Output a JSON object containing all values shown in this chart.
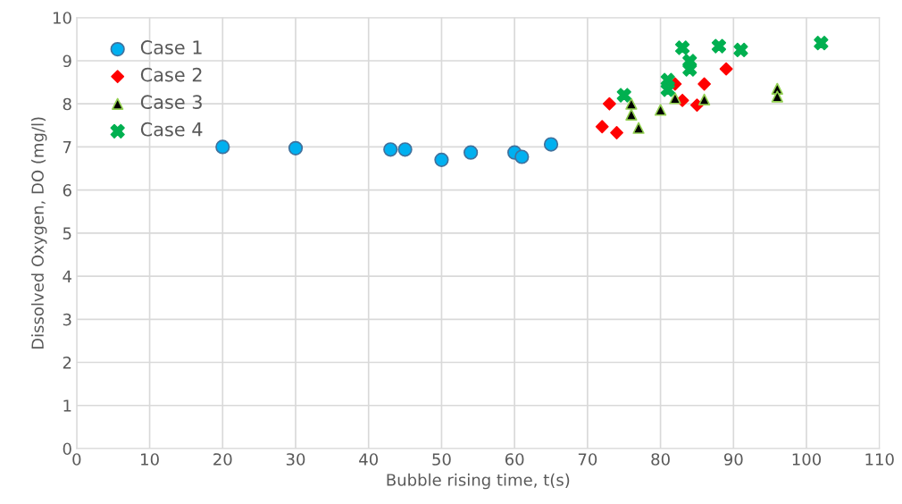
{
  "chart_data": {
    "type": "scatter",
    "xlabel": "Bubble rising time, t(s)",
    "ylabel": "Dissolved Oxygen, DO (mg/l)",
    "xlim": [
      0,
      110
    ],
    "xticks": [
      0,
      10,
      20,
      30,
      40,
      50,
      60,
      70,
      80,
      90,
      100,
      110
    ],
    "ylim": [
      0,
      10
    ],
    "yticks": [
      0,
      1,
      2,
      3,
      4,
      5,
      6,
      7,
      8,
      9,
      10
    ],
    "grid": true,
    "legend": "top left",
    "series": [
      {
        "name": "Case 1",
        "color": "#00b0f0",
        "marker": "circle",
        "x": [
          20,
          30,
          43,
          45,
          50,
          54,
          60,
          61,
          65
        ],
        "values": [
          7.0,
          6.97,
          6.94,
          6.94,
          6.7,
          6.87,
          6.87,
          6.77,
          7.06
        ]
      },
      {
        "name": "Case 2",
        "color": "#ff0000",
        "marker": "diamond",
        "x": [
          72,
          73,
          74,
          75,
          82,
          83,
          85,
          86,
          89
        ],
        "values": [
          7.47,
          8.0,
          7.33,
          null,
          8.46,
          8.08,
          7.97,
          8.46,
          8.81
        ]
      },
      {
        "name": "Case 3",
        "color": "#000000",
        "marker": "triangle",
        "x": [
          76,
          76,
          77,
          80,
          82,
          86,
          96,
          96
        ],
        "values": [
          8.0,
          7.75,
          7.44,
          7.86,
          8.13,
          8.1,
          8.35,
          8.17
        ]
      },
      {
        "name": "Case 4",
        "color": "#00b050",
        "marker": "cross",
        "x": [
          75,
          83,
          84,
          84,
          81,
          81,
          88,
          91,
          102
        ],
        "values": [
          8.2,
          9.3,
          8.99,
          8.8,
          8.55,
          8.33,
          9.34,
          9.25,
          9.41
        ]
      }
    ]
  }
}
